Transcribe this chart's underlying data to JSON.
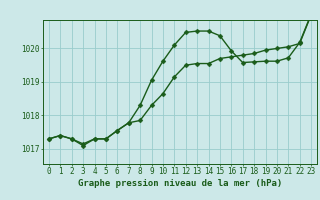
{
  "xlabel": "Graphe pression niveau de la mer (hPa)",
  "bg_color": "#cce8e8",
  "grid_color": "#99cccc",
  "line_color": "#1a5c1a",
  "marker_color": "#1a5c1a",
  "x_ticks": [
    0,
    1,
    2,
    3,
    4,
    5,
    6,
    7,
    8,
    9,
    10,
    11,
    12,
    13,
    14,
    15,
    16,
    17,
    18,
    19,
    20,
    21,
    22,
    23
  ],
  "y_ticks": [
    1017,
    1018,
    1019,
    1020
  ],
  "ylim": [
    1016.55,
    1020.85
  ],
  "xlim": [
    -0.5,
    23.5
  ],
  "series1": [
    1017.3,
    1017.4,
    1017.3,
    1017.15,
    1017.3,
    1017.3,
    1017.55,
    1017.78,
    1017.85,
    1018.3,
    1018.65,
    1019.15,
    1019.5,
    1019.55,
    1019.55,
    1019.7,
    1019.75,
    1019.8,
    1019.85,
    1019.95,
    1020.0,
    1020.05,
    1020.15,
    1021.0
  ],
  "series2": [
    1017.3,
    1017.4,
    1017.3,
    1017.1,
    1017.3,
    1017.3,
    1017.55,
    1017.78,
    1018.3,
    1019.05,
    1019.62,
    1020.1,
    1020.48,
    1020.52,
    1020.52,
    1020.38,
    1019.93,
    1019.58,
    1019.6,
    1019.62,
    1019.62,
    1019.72,
    1020.18,
    1021.02
  ],
  "marker_size": 2.5,
  "line_width": 1.0,
  "tick_fontsize": 5.5,
  "label_fontsize": 6.5
}
